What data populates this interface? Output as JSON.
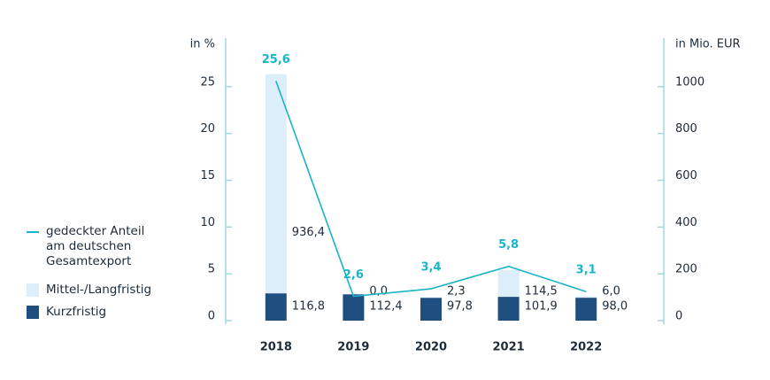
{
  "chart_data": {
    "type": "bar",
    "stacked": true,
    "y_label": "in %",
    "y2_label": "in Mio. EUR",
    "categories": [
      "2018",
      "2019",
      "2020",
      "2021",
      "2022"
    ],
    "series": [
      {
        "name": "gedeckter Anteil am deutschen Gesamtexport",
        "type": "line",
        "axis": "y",
        "color": "#1ab4c8",
        "values": [
          25.6,
          2.6,
          3.4,
          5.8,
          3.1
        ],
        "value_labels": [
          "25,6",
          "2,6",
          "3,4",
          "5,8",
          "3,1"
        ]
      },
      {
        "name": "Mittel-/Langfristig",
        "type": "bar",
        "axis": "y2",
        "color": "#ddeefb",
        "values": [
          936.4,
          0.0,
          2.3,
          114.5,
          6.0
        ],
        "value_labels": [
          "936,4",
          "0,0",
          "2,3",
          "114,5",
          "6,0"
        ]
      },
      {
        "name": "Kurzfristig",
        "type": "bar",
        "axis": "y2",
        "color": "#1f4e80",
        "values": [
          116.8,
          112.4,
          97.8,
          101.9,
          98.0
        ],
        "value_labels": [
          "116,8",
          "112,4",
          "97,8",
          "101,9",
          "98,0"
        ]
      }
    ],
    "stack_order": [
      2,
      1
    ],
    "ylim": [
      0,
      30
    ],
    "yticks": [
      0,
      5,
      10,
      15,
      20,
      25
    ],
    "y2lim": [
      0,
      1200
    ],
    "y2ticks": [
      0,
      200,
      400,
      600,
      800,
      1000
    ]
  }
}
